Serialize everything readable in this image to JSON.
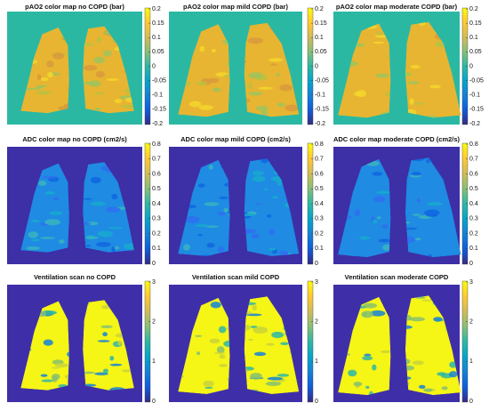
{
  "panels": [
    {
      "title": "pAO2 color map no COPD (bar)",
      "ticks": [
        0.2,
        0.15,
        0.1,
        0.05,
        0,
        -0.05,
        -0.1,
        -0.15,
        -0.2
      ]
    },
    {
      "title": "pAO2 color map mild COPD (bar)",
      "ticks": [
        0.2,
        0.15,
        0.1,
        0.05,
        0,
        -0.05,
        -0.1,
        -0.15,
        -0.2
      ]
    },
    {
      "title": "pAO2 color map moderate COPD (bar)",
      "ticks": [
        0.2,
        0.15,
        0.1,
        0.05,
        0,
        -0.05,
        -0.1,
        -0.15,
        -0.2
      ]
    },
    {
      "title": "ADC color map no COPD (cm2/s)",
      "ticks": [
        0.8,
        0.7,
        0.6,
        0.5,
        0.4,
        0.3,
        0.2,
        0.1,
        0
      ]
    },
    {
      "title": "ADC color map mild COPD (cm2/s)",
      "ticks": [
        0.8,
        0.7,
        0.6,
        0.5,
        0.4,
        0.3,
        0.2,
        0.1,
        0
      ]
    },
    {
      "title": "ADC color map moderate COPD (cm2/s)",
      "ticks": [
        0.8,
        0.7,
        0.6,
        0.5,
        0.4,
        0.3,
        0.2,
        0.1,
        0
      ]
    },
    {
      "title": "Ventilation scan no COPD",
      "ticks": [
        3,
        2,
        1,
        0
      ]
    },
    {
      "title": "Ventilation scan mild COPD",
      "ticks": [
        3,
        2,
        1,
        0
      ]
    },
    {
      "title": "Ventilation scan moderate COPD",
      "ticks": [
        3,
        2,
        1,
        0
      ]
    }
  ]
}
